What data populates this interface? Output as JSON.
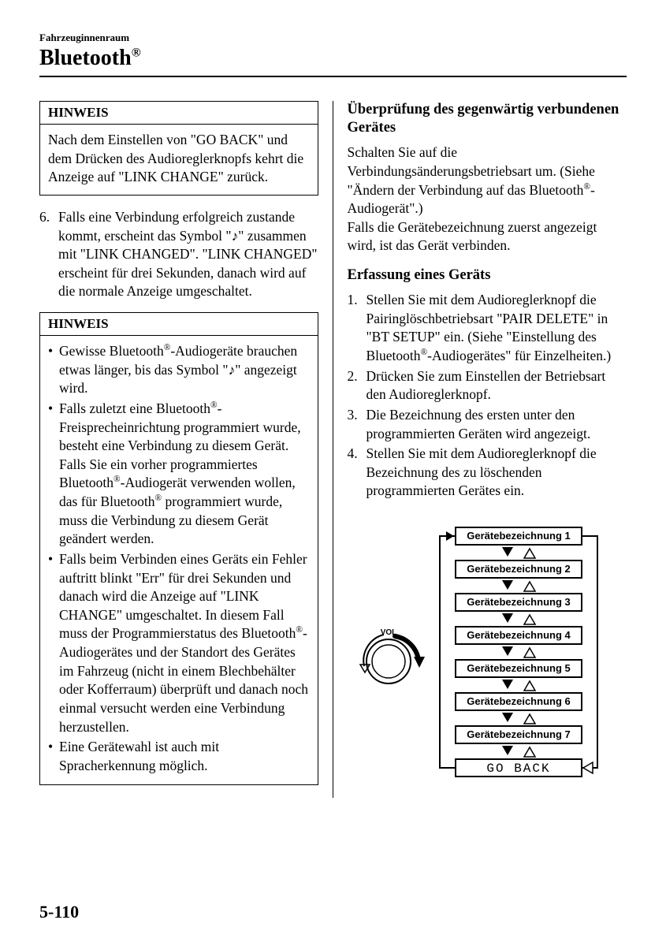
{
  "header": {
    "section": "Fahrzeuginnenraum",
    "title_html": "Bluetooth<sup>®</sup>"
  },
  "left": {
    "hinweis1": {
      "title": "HINWEIS",
      "body": "Nach dem Einstellen von \"GO BACK\" und dem Drücken des Audioreglerknopfs kehrt die Anzeige auf \"LINK CHANGE\" zurück."
    },
    "item6": {
      "num": "6.",
      "text": "Falls eine Verbindung erfolgreich zustande kommt, erscheint das Symbol \"♪\" zusammen mit \"LINK CHANGED\". \"LINK CHANGED\" erscheint für drei Sekunden, danach wird auf die normale Anzeige umgeschaltet."
    },
    "hinweis2": {
      "title": "HINWEIS",
      "bullets_html": [
        "Gewisse Bluetooth<sup>®</sup>-Audiogeräte brauchen etwas länger, bis das Symbol \"♪\" angezeigt wird.",
        "Falls zuletzt eine Bluetooth<sup>®</sup>-Freisprecheinrichtung programmiert wurde, besteht eine Verbindung zu diesem Gerät. Falls Sie ein vorher programmiertes Bluetooth<sup>®</sup>-Audiogerät verwenden wollen, das für Bluetooth<sup>®</sup> programmiert wurde, muss die Verbindung zu diesem Gerät geändert werden.",
        "Falls beim Verbinden eines Geräts ein Fehler auftritt blinkt \"Err\" für drei Sekunden und danach wird die Anzeige auf \"LINK CHANGE\" umgeschaltet. In diesem Fall muss der Programmierstatus des Bluetooth<sup>®</sup>-Audiogerätes und der Standort des Gerätes im Fahrzeug (nicht in einem Blechbehälter oder Kofferraum) überprüft und danach noch einmal versucht werden eine Verbindung herzustellen.",
        "Eine Gerätewahl ist auch mit Spracherkennung möglich."
      ]
    }
  },
  "right": {
    "heading1": "Überprüfung des gegenwärtig verbundenen Gerätes",
    "para1_html": "Schalten Sie auf die Verbindungsänderungsbetriebsart um. (Siehe \"Ändern der Verbindung auf das Bluetooth<sup>®</sup>-Audiogerät\".)<br>Falls die Gerätebezeichnung zuerst angezeigt wird, ist das Gerät verbinden.",
    "heading2": "Erfassung eines Geräts",
    "steps_html": [
      "Stellen Sie mit dem Audioreglerknopf die Pairinglöschbetriebsart \"PAIR DELETE\" in \"BT SETUP\" ein. (Siehe \"Einstellung des Bluetooth<sup>®</sup>-Audiogerätes\" für Einzelheiten.)",
      "Drücken Sie zum Einstellen der Betriebsart den Audioreglerknopf.",
      "Die Bezeichnung des ersten unter den programmierten Geräten wird angezeigt.",
      "Stellen Sie mit dem Audioreglerknopf die Bezeichnung des zu löschenden programmierten Gerätes ein."
    ],
    "diagram": {
      "vol_label": "VOL",
      "devices": [
        "Gerätebezeichnung 1",
        "Gerätebezeichnung 2",
        "Gerätebezeichnung 3",
        "Gerätebezeichnung 4",
        "Gerätebezeichnung 5",
        "Gerätebezeichnung 6",
        "Gerätebezeichnung 7"
      ],
      "go_back": "GO BACK",
      "box_font_family": "Arial, Helvetica, sans-serif",
      "box_font_size": 13,
      "goback_font_family": "'Courier New', monospace",
      "goback_font_size": 16,
      "stroke": "#000000",
      "fill": "#ffffff"
    }
  },
  "page_number": "5-110",
  "colors": {
    "text": "#000000",
    "background": "#ffffff",
    "border": "#000000"
  }
}
